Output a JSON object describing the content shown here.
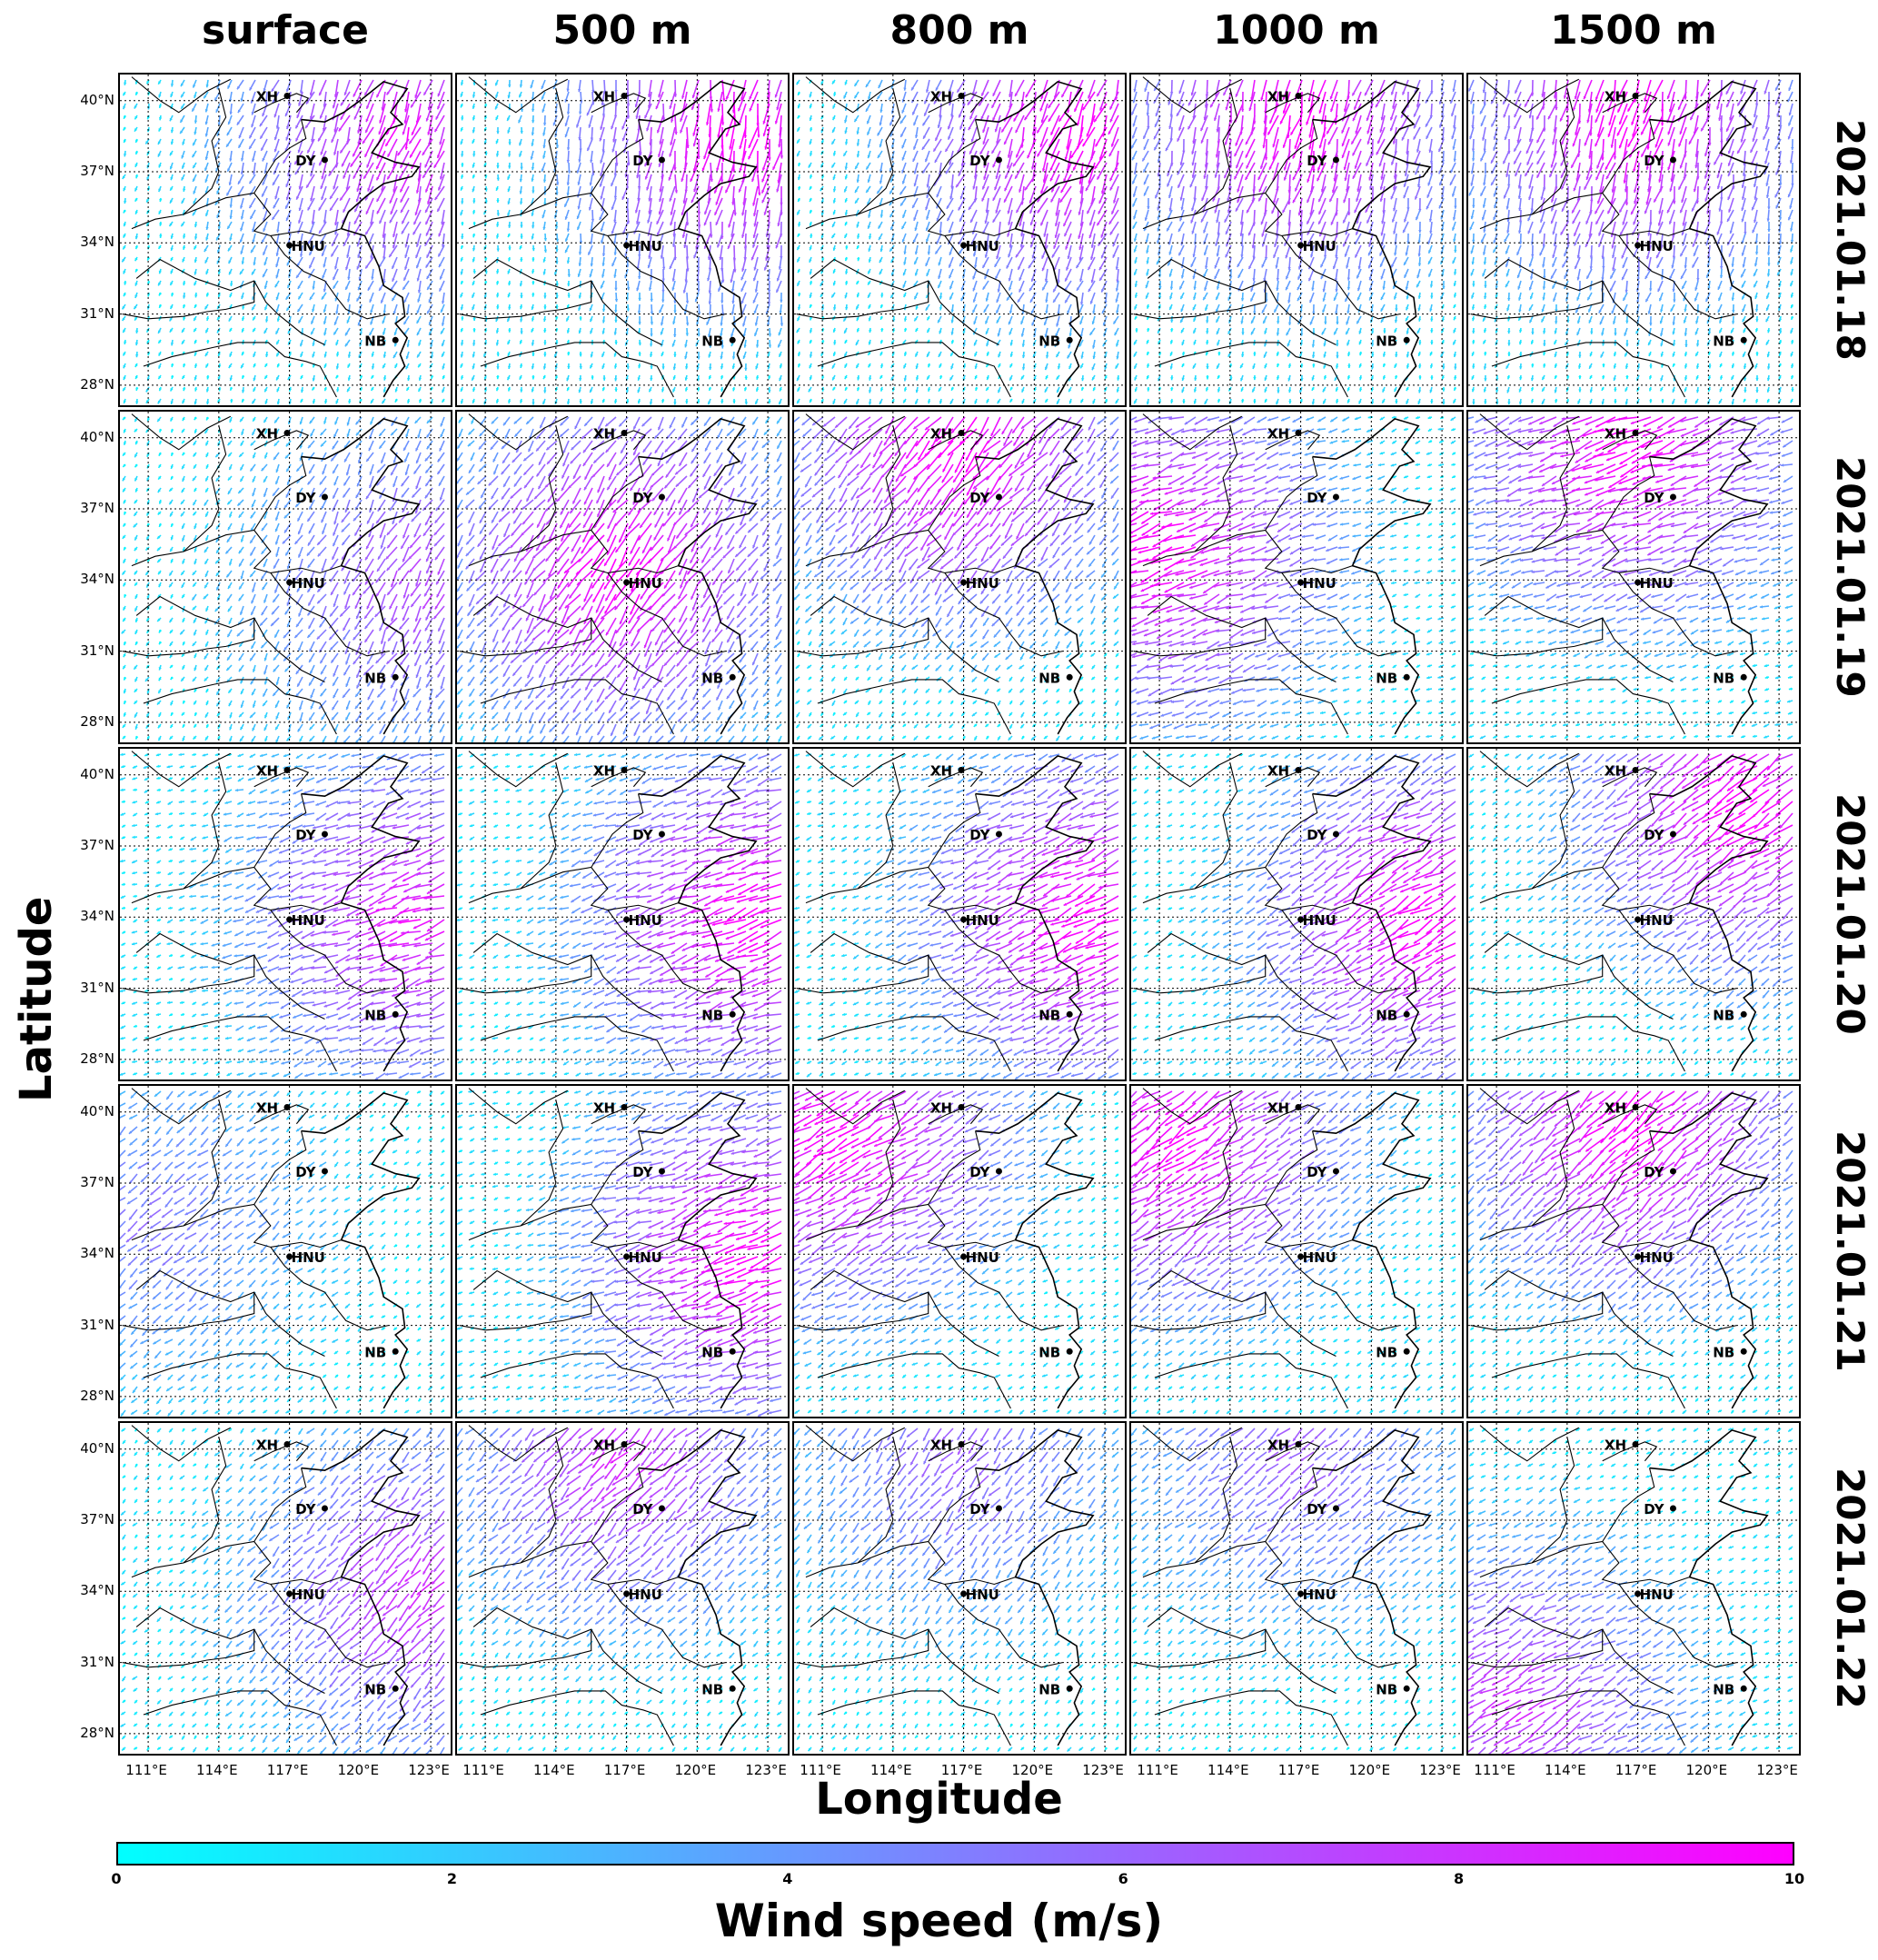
{
  "chart_data": {
    "type": "vector-field-grid",
    "columns": [
      "surface",
      "500 m",
      "800 m",
      "1000 m",
      "1500 m"
    ],
    "rows": [
      "2021.01.18",
      "2021.01.19",
      "2021.01.20",
      "2021.01.21",
      "2021.01.22"
    ],
    "xlabel": "Longitude",
    "ylabel": "Latitude",
    "x_ticks": [
      "111°E",
      "114°E",
      "117°E",
      "120°E",
      "123°E"
    ],
    "y_ticks": [
      "40°N",
      "37°N",
      "34°N",
      "31°N",
      "28°N"
    ],
    "xlim": [
      109.8,
      124.0
    ],
    "ylim": [
      27.0,
      41.1
    ],
    "x_tick_values": [
      111,
      114,
      117,
      120,
      123
    ],
    "y_tick_values": [
      40,
      37,
      34,
      31,
      28
    ],
    "sites": [
      {
        "name": "XH",
        "lon": 116.9,
        "lat": 40.2
      },
      {
        "name": "DY",
        "lon": 118.5,
        "lat": 37.5
      },
      {
        "name": "HNU",
        "lon": 117.0,
        "lat": 33.9
      },
      {
        "name": "NB",
        "lon": 121.5,
        "lat": 29.9
      }
    ],
    "grid": true,
    "colorbar": {
      "label": "Wind speed (m/s)",
      "min": 0,
      "max": 10,
      "ticks": [
        "0",
        "2",
        "4",
        "6",
        "8",
        "10"
      ],
      "color_low": "#00ffff",
      "color_high": "#ff00ff"
    },
    "panel_wind_fields_approx": [
      [
        {
          "dir_deg": 200,
          "speed_max": 9,
          "strong_side": "northeast"
        },
        {
          "dir_deg": 190,
          "speed_max": 10,
          "strong_side": "northeast"
        },
        {
          "dir_deg": 200,
          "speed_max": 10,
          "strong_side": "northeast"
        },
        {
          "dir_deg": 195,
          "speed_max": 10,
          "strong_side": "north"
        },
        {
          "dir_deg": 195,
          "speed_max": 10,
          "strong_side": "north"
        }
      ],
      [
        {
          "dir_deg": 210,
          "speed_max": 7,
          "strong_side": "east"
        },
        {
          "dir_deg": 215,
          "speed_max": 10,
          "strong_side": "center"
        },
        {
          "dir_deg": 220,
          "speed_max": 10,
          "strong_side": "north"
        },
        {
          "dir_deg": 250,
          "speed_max": 10,
          "strong_side": "west"
        },
        {
          "dir_deg": 250,
          "speed_max": 10,
          "strong_side": "north"
        }
      ],
      [
        {
          "dir_deg": 250,
          "speed_max": 9,
          "strong_side": "east"
        },
        {
          "dir_deg": 250,
          "speed_max": 10,
          "strong_side": "east"
        },
        {
          "dir_deg": 245,
          "speed_max": 10,
          "strong_side": "east"
        },
        {
          "dir_deg": 240,
          "speed_max": 10,
          "strong_side": "east"
        },
        {
          "dir_deg": 235,
          "speed_max": 10,
          "strong_side": "northeast"
        }
      ],
      [
        {
          "dir_deg": 230,
          "speed_max": 5,
          "strong_side": "west"
        },
        {
          "dir_deg": 250,
          "speed_max": 10,
          "strong_side": "east"
        },
        {
          "dir_deg": 240,
          "speed_max": 10,
          "strong_side": "northwest"
        },
        {
          "dir_deg": 235,
          "speed_max": 10,
          "strong_side": "northwest"
        },
        {
          "dir_deg": 230,
          "speed_max": 10,
          "strong_side": "north"
        }
      ],
      [
        {
          "dir_deg": 225,
          "speed_max": 8,
          "strong_side": "east"
        },
        {
          "dir_deg": 225,
          "speed_max": 8,
          "strong_side": "north"
        },
        {
          "dir_deg": 220,
          "speed_max": 6,
          "strong_side": "north"
        },
        {
          "dir_deg": 230,
          "speed_max": 6,
          "strong_side": "north"
        },
        {
          "dir_deg": 240,
          "speed_max": 8,
          "strong_side": "southwest"
        }
      ]
    ]
  }
}
